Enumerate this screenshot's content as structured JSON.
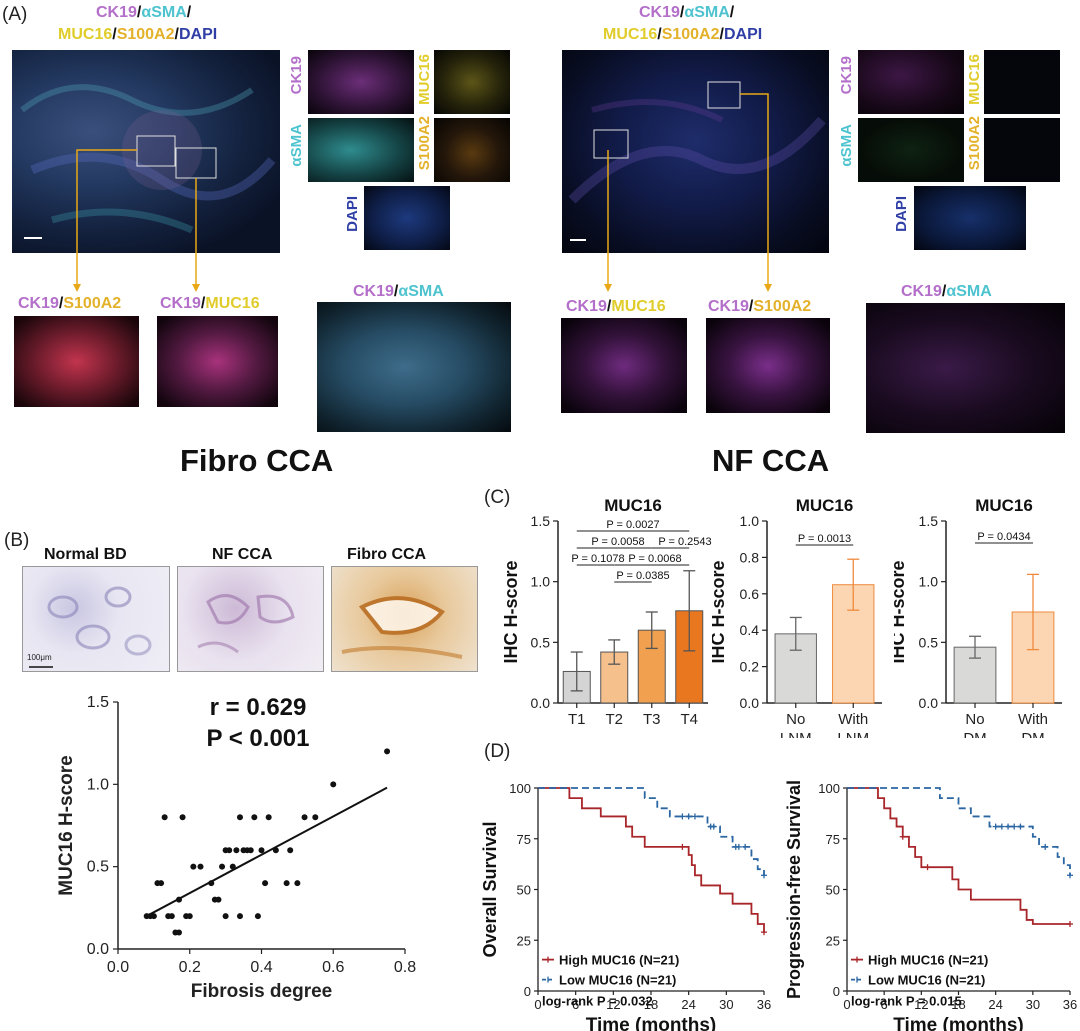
{
  "panels": {
    "a": "(A)",
    "b": "(B)",
    "c": "(C)",
    "d": "(D)"
  },
  "colors": {
    "ck19": "#b36fc9",
    "asma": "#4cc3cf",
    "muc16": "#e0cc2a",
    "s100a2": "#e3b12a",
    "dapi": "#2f3fa6"
  },
  "panel_a": {
    "left": {
      "title_line1": {
        "ck19": "CK19",
        "sep1": "/",
        "asma": "αSMA",
        "sep2": "/"
      },
      "title_line2": {
        "muc16": "MUC16",
        "sep1": "/",
        "s100a2": "S100A2",
        "sep2": "/",
        "dapi": "DAPI"
      },
      "ch_ck19": "CK19",
      "ch_asma": "αSMA",
      "ch_muc16": "MUC16",
      "ch_s100a2": "S100A2",
      "ch_dapi": "DAPI",
      "zoom1": {
        "a": "CK19",
        "sep": "/",
        "b": "S100A2"
      },
      "zoom2": {
        "a": "CK19",
        "sep": "/",
        "b": "MUC16"
      },
      "zoom3": {
        "a": "CK19",
        "sep": "/",
        "b": "αSMA"
      },
      "caption": "Fibro CCA"
    },
    "right": {
      "title_line1": {
        "ck19": "CK19",
        "sep1": "/",
        "asma": "αSMA",
        "sep2": "/"
      },
      "title_line2": {
        "muc16": "MUC16",
        "sep1": "/",
        "s100a2": "S100A2",
        "sep2": "/",
        "dapi": "DAPI"
      },
      "ch_ck19": "CK19",
      "ch_asma": "αSMA",
      "ch_muc16": "MUC16",
      "ch_s100a2": "S100A2",
      "ch_dapi": "DAPI",
      "zoom1": {
        "a": "CK19",
        "sep": "/",
        "b": "MUC16"
      },
      "zoom2": {
        "a": "CK19",
        "sep": "/",
        "b": "S100A2"
      },
      "zoom3": {
        "a": "CK19",
        "sep": "/",
        "b": "αSMA"
      },
      "caption": "NF CCA"
    }
  },
  "panel_b": {
    "ihc_titles": [
      "Normal BD",
      "NF CCA",
      "Fibro CCA"
    ],
    "scale_bar": "100μm"
  },
  "chart_data": [
    {
      "id": "scatter",
      "type": "scatter",
      "xlabel": "Fibrosis degree",
      "ylabel": "MUC16 H-score",
      "xlim": [
        0,
        0.8
      ],
      "ylim": [
        0,
        1.5
      ],
      "xticks": [
        "0.0",
        "0.2",
        "0.4",
        "0.6",
        "0.8"
      ],
      "yticks": [
        "0.0",
        "0.5",
        "1.0",
        "1.5"
      ],
      "annotation_r": "r = 0.629",
      "annotation_p": "P < 0.001",
      "fit": {
        "x0": 0.08,
        "y0": 0.2,
        "x1": 0.75,
        "y1": 0.98
      },
      "points": [
        [
          0.08,
          0.2
        ],
        [
          0.09,
          0.2
        ],
        [
          0.1,
          0.2
        ],
        [
          0.11,
          0.4
        ],
        [
          0.12,
          0.4
        ],
        [
          0.13,
          0.8
        ],
        [
          0.14,
          0.2
        ],
        [
          0.15,
          0.2
        ],
        [
          0.16,
          0.1
        ],
        [
          0.17,
          0.1
        ],
        [
          0.17,
          0.3
        ],
        [
          0.18,
          0.8
        ],
        [
          0.19,
          0.2
        ],
        [
          0.2,
          0.2
        ],
        [
          0.21,
          0.5
        ],
        [
          0.23,
          0.5
        ],
        [
          0.26,
          0.4
        ],
        [
          0.27,
          0.3
        ],
        [
          0.28,
          0.3
        ],
        [
          0.29,
          0.5
        ],
        [
          0.3,
          0.6
        ],
        [
          0.3,
          0.2
        ],
        [
          0.31,
          0.6
        ],
        [
          0.32,
          0.5
        ],
        [
          0.33,
          0.6
        ],
        [
          0.34,
          0.8
        ],
        [
          0.34,
          0.2
        ],
        [
          0.35,
          0.6
        ],
        [
          0.36,
          0.6
        ],
        [
          0.37,
          0.6
        ],
        [
          0.38,
          0.8
        ],
        [
          0.39,
          0.2
        ],
        [
          0.4,
          0.6
        ],
        [
          0.41,
          0.4
        ],
        [
          0.42,
          0.8
        ],
        [
          0.44,
          0.6
        ],
        [
          0.47,
          0.4
        ],
        [
          0.48,
          0.6
        ],
        [
          0.5,
          0.4
        ],
        [
          0.52,
          0.8
        ],
        [
          0.55,
          0.8
        ],
        [
          0.6,
          1.0
        ],
        [
          0.75,
          1.2
        ]
      ]
    },
    {
      "id": "bars_t",
      "type": "bar",
      "title": "MUC16",
      "ylabel": "IHC H-score",
      "categories": [
        "T1",
        "T2",
        "T3",
        "T4"
      ],
      "values": [
        0.26,
        0.42,
        0.6,
        0.76
      ],
      "errors": [
        0.16,
        0.1,
        0.15,
        0.33
      ],
      "colors": [
        "#d4d4d4",
        "#f6c08c",
        "#f0a04e",
        "#e8771f"
      ],
      "ylim": [
        0,
        1.5
      ],
      "yticks": [
        "0.0",
        "0.5",
        "1.0",
        "1.5"
      ],
      "comparisons": [
        {
          "from": 0,
          "to": 3,
          "text": "P = 0.0027"
        },
        {
          "from": 0,
          "to": 2,
          "text": "P = 0.0058"
        },
        {
          "from": 2,
          "to": 3,
          "text": "P = 0.2543"
        },
        {
          "from": 0,
          "to": 1,
          "text": "P = 0.1078"
        },
        {
          "from": 1,
          "to": 3,
          "text": "P = 0.0068"
        },
        {
          "from": 1,
          "to": 2,
          "text": "P = 0.0385"
        }
      ]
    },
    {
      "id": "bars_lnm",
      "type": "bar",
      "title": "MUC16",
      "ylabel": "IHC H-score",
      "categories": [
        [
          "No",
          "LNM"
        ],
        [
          "With",
          "LNM"
        ]
      ],
      "values": [
        0.38,
        0.65
      ],
      "errors": [
        0.09,
        0.14
      ],
      "colors": [
        "#d9dad8",
        "#fcd6b2"
      ],
      "edges": [
        "#666666",
        "#ee8a3c"
      ],
      "ylim": [
        0,
        1.0
      ],
      "yticks": [
        "0.0",
        "0.2",
        "0.4",
        "0.6",
        "0.8",
        "1.0"
      ],
      "comparisons": [
        {
          "from": 0,
          "to": 1,
          "text": "P = 0.0013"
        }
      ]
    },
    {
      "id": "bars_dm",
      "type": "bar",
      "title": "MUC16",
      "ylabel": "IHC H-score",
      "categories": [
        [
          "No",
          "DM"
        ],
        [
          "With",
          "DM"
        ]
      ],
      "values": [
        0.46,
        0.75
      ],
      "errors": [
        0.09,
        0.31
      ],
      "colors": [
        "#d9dad8",
        "#fcd6b2"
      ],
      "edges": [
        "#666666",
        "#ee8a3c"
      ],
      "ylim": [
        0,
        1.5
      ],
      "yticks": [
        "0.0",
        "0.5",
        "1.0",
        "1.5"
      ],
      "comparisons": [
        {
          "from": 0,
          "to": 1,
          "text": "P = 0.0434"
        }
      ]
    },
    {
      "id": "km_os",
      "type": "line",
      "ylabel": "Overall Survival",
      "xlabel": "Time (months)",
      "xlim": [
        0,
        36
      ],
      "ylim": [
        0,
        100
      ],
      "xticks": [
        "0",
        "6",
        "12",
        "18",
        "24",
        "30",
        "36"
      ],
      "yticks": [
        "0",
        "25",
        "50",
        "75",
        "100"
      ],
      "legend": [
        "High MUC16 (N=21)",
        "Low MUC16 (N=21)"
      ],
      "logrank": "log-rank P = 0.032",
      "series": [
        {
          "name": "High MUC16",
          "color": "#a8262a",
          "dash": false,
          "steps": [
            [
              0,
              100
            ],
            [
              5,
              95
            ],
            [
              7,
              90
            ],
            [
              10,
              86
            ],
            [
              14,
              81
            ],
            [
              15,
              76
            ],
            [
              17,
              71
            ],
            [
              24,
              67
            ],
            [
              24.5,
              62
            ],
            [
              25,
              57
            ],
            [
              26,
              52
            ],
            [
              29,
              48
            ],
            [
              31,
              43
            ],
            [
              34,
              38
            ],
            [
              35,
              33
            ],
            [
              36,
              29
            ]
          ],
          "censor": [
            [
              23,
              71
            ],
            [
              36,
              29
            ]
          ]
        },
        {
          "name": "Low MUC16",
          "color": "#2b66a3",
          "dash": true,
          "steps": [
            [
              0,
              100
            ],
            [
              17,
              95
            ],
            [
              19,
              90
            ],
            [
              21,
              86
            ],
            [
              27,
              81
            ],
            [
              29,
              76
            ],
            [
              31,
              71
            ],
            [
              34,
              65
            ],
            [
              35,
              60
            ],
            [
              36,
              57
            ]
          ],
          "censor": [
            [
              23,
              86
            ],
            [
              24,
              86
            ],
            [
              25,
              86
            ],
            [
              27.5,
              81
            ],
            [
              28,
              81
            ],
            [
              31.5,
              71
            ],
            [
              32,
              71
            ],
            [
              33,
              71
            ],
            [
              36,
              57
            ]
          ]
        }
      ]
    },
    {
      "id": "km_pfs",
      "type": "line",
      "ylabel": "Progression-free Survival",
      "xlabel": "Time (months)",
      "xlim": [
        0,
        36
      ],
      "ylim": [
        0,
        100
      ],
      "xticks": [
        "0",
        "6",
        "12",
        "18",
        "24",
        "30",
        "36"
      ],
      "yticks": [
        "0",
        "25",
        "50",
        "75",
        "100"
      ],
      "legend": [
        "High MUC16 (N=21)",
        "Low MUC16 (N=21)"
      ],
      "logrank": "log-rank P = 0.015",
      "series": [
        {
          "name": "High MUC16",
          "color": "#a8262a",
          "dash": false,
          "steps": [
            [
              0,
              100
            ],
            [
              5,
              95
            ],
            [
              6,
              90
            ],
            [
              7,
              85
            ],
            [
              8,
              81
            ],
            [
              9,
              76
            ],
            [
              10,
              71
            ],
            [
              11,
              66
            ],
            [
              12,
              61
            ],
            [
              17,
              55
            ],
            [
              18,
              50
            ],
            [
              20,
              45
            ],
            [
              28,
              40
            ],
            [
              29,
              35
            ],
            [
              30,
              33
            ],
            [
              36,
              33
            ]
          ],
          "censor": [
            [
              9,
              76
            ],
            [
              13,
              61
            ],
            [
              36,
              33
            ]
          ]
        },
        {
          "name": "Low MUC16",
          "color": "#2b66a3",
          "dash": true,
          "steps": [
            [
              0,
              100
            ],
            [
              15,
              95
            ],
            [
              18,
              90
            ],
            [
              20,
              86
            ],
            [
              23,
              81
            ],
            [
              30,
              76
            ],
            [
              31,
              71
            ],
            [
              34,
              66
            ],
            [
              35,
              62
            ],
            [
              36,
              57
            ]
          ],
          "censor": [
            [
              24,
              81
            ],
            [
              25,
              81
            ],
            [
              26,
              81
            ],
            [
              27,
              81
            ],
            [
              28,
              81
            ],
            [
              32,
              71
            ],
            [
              36,
              57
            ]
          ]
        }
      ]
    }
  ]
}
